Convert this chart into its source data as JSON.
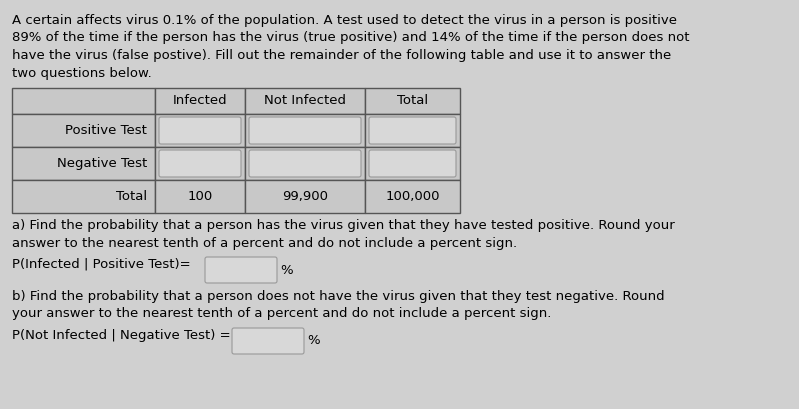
{
  "background_color": "#d0d0d0",
  "text_color": "#000000",
  "paragraph_lines": [
    "A certain affects virus 0.1% of the population. A test used to detect the virus in a person is positive",
    "89% of the time if the person has the virus (true positive) and 14% of the time if the person does not",
    "have the virus (false postive). Fill out the remainder of the following table and use it to answer the",
    "two questions below."
  ],
  "table_headers": [
    "",
    "Infected",
    "Not Infected",
    "Total"
  ],
  "total_row": [
    "Total",
    "100",
    "99,900",
    "100,000"
  ],
  "row_labels": [
    "Positive Test",
    "Negative Test"
  ],
  "question_a_line1": "a) Find the probability that a person has the virus given that they have tested positive. Round your",
  "question_a_line2": "answer to the nearest tenth of a percent and do not include a percent sign.",
  "question_a_expr": "P(Infected | Positive Test)=",
  "question_a_unit": "%",
  "question_b_line1": "b) Find the probability that a person does not have the virus given that they test negative. Round",
  "question_b_line2": "your answer to the nearest tenth of a percent and do not include a percent sign.",
  "question_b_expr": "P(Not Infected | Negative Test) =",
  "question_b_unit": "%",
  "table_bg": "#c8c8c8",
  "cell_inner_bg": "#d8d8d8",
  "input_box_bg": "#d8d8d8",
  "input_box_border": "#999999",
  "table_border": "#555555"
}
